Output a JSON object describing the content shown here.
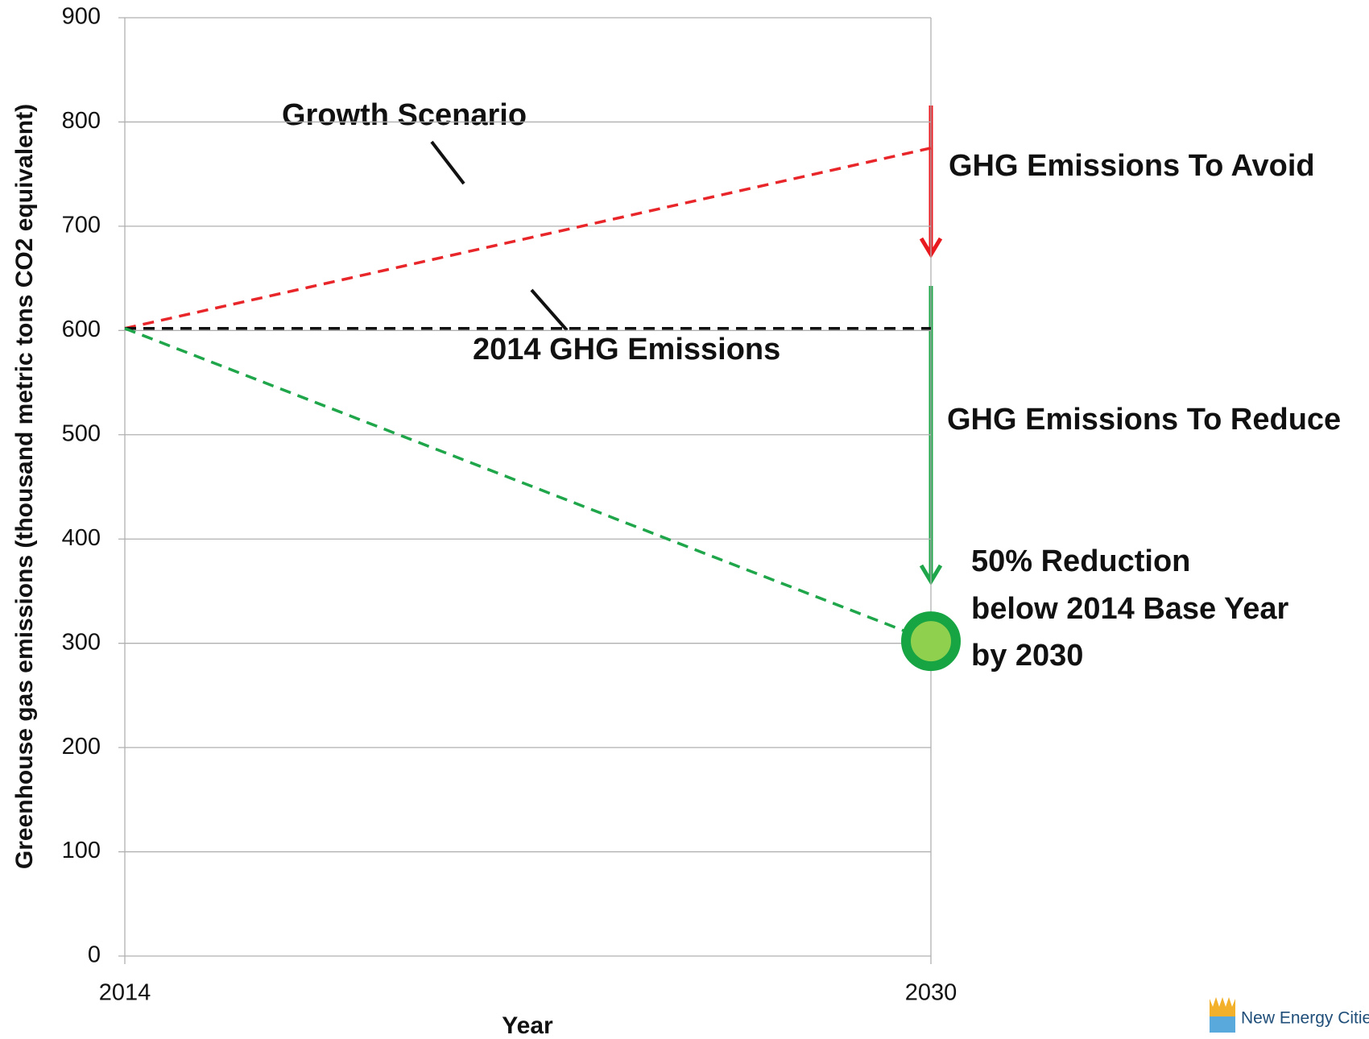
{
  "chart_data": {
    "type": "line",
    "x_label": "Year",
    "y_label": "Greenhouse gas emissions (thousand metric tons CO2 equivalent)",
    "x": [
      2014,
      2030
    ],
    "xlim": [
      2014,
      2030
    ],
    "xticks": [
      2014,
      2030
    ],
    "ylim": [
      0,
      900
    ],
    "yticks": [
      0,
      100,
      200,
      300,
      400,
      500,
      600,
      700,
      800,
      900
    ],
    "grid": true,
    "series": [
      {
        "name": "Growth Scenario",
        "color": "#e8262a",
        "values": [
          602,
          775
        ]
      },
      {
        "name": "2014 GHG Emissions",
        "color": "#111111",
        "values": [
          602,
          602
        ]
      },
      {
        "color": "#1fa64a",
        "values": [
          602,
          302
        ]
      }
    ],
    "target": {
      "x": 2030,
      "y": 302,
      "color": "#17a443",
      "inner_color": "#8fd14f"
    },
    "annotations": {
      "avoid": "GHG Emissions To Avoid",
      "reduce": "GHG Emissions To Reduce",
      "target_lines": [
        "50% Reduction",
        "below 2014 Base Year",
        "by 2030"
      ]
    },
    "logo": "New Energy Cities"
  }
}
